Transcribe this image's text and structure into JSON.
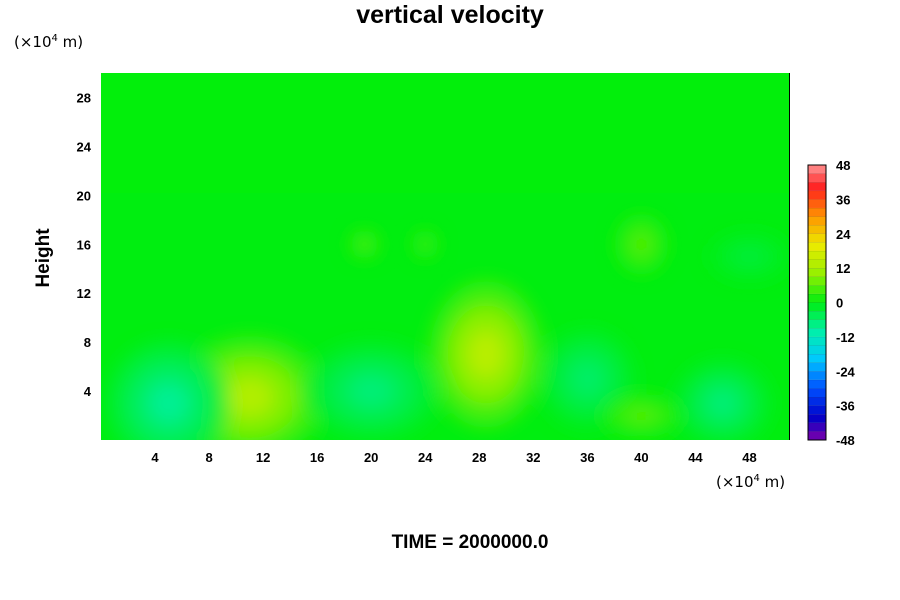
{
  "chart_data": {
    "type": "heatmap",
    "title": "vertical velocity",
    "xlabel": "",
    "ylabel": "Height",
    "x_unit": "(×10⁴ m)",
    "y_unit": "(×10⁴ m)",
    "x_unit_prefix": "(×10",
    "x_unit_exp": "4",
    "x_unit_suffix": " m)",
    "y_unit_prefix": "(×10",
    "y_unit_exp": "4",
    "y_unit_suffix": " m)",
    "xlim": [
      0,
      51
    ],
    "ylim": [
      0,
      30
    ],
    "x_ticks": [
      4,
      8,
      12,
      16,
      20,
      24,
      28,
      32,
      36,
      40,
      44,
      48
    ],
    "y_ticks": [
      4,
      8,
      12,
      16,
      20,
      24,
      28
    ],
    "colorbar": {
      "min": -48,
      "max": 48,
      "ticks": [
        48,
        36,
        24,
        12,
        0,
        -12,
        -24,
        -36,
        -48
      ]
    },
    "features": [
      {
        "x": 11,
        "y": 3.5,
        "value": 14,
        "rx": 5.5,
        "ry": 5
      },
      {
        "x": 28.5,
        "y": 7,
        "value": 15,
        "rx": 4.2,
        "ry": 6
      },
      {
        "x": 5,
        "y": 3,
        "value": -9,
        "rx": 4.5,
        "ry": 5
      },
      {
        "x": 20,
        "y": 4,
        "value": -7,
        "rx": 5,
        "ry": 4
      },
      {
        "x": 36,
        "y": 5,
        "value": -6,
        "rx": 3.5,
        "ry": 4
      },
      {
        "x": 46,
        "y": 3,
        "value": -7,
        "rx": 3.5,
        "ry": 3.5
      },
      {
        "x": 40,
        "y": 2,
        "value": 6,
        "rx": 3,
        "ry": 1.8
      },
      {
        "x": 40,
        "y": 16,
        "value": 6,
        "rx": 2,
        "ry": 2.5
      },
      {
        "x": 19.5,
        "y": 16,
        "value": 6,
        "rx": 1.2,
        "ry": 1.2
      },
      {
        "x": 24,
        "y": 16,
        "value": 5,
        "rx": 1,
        "ry": 1.2
      },
      {
        "x": 48,
        "y": 15,
        "value": -3,
        "rx": 3,
        "ry": 2
      }
    ],
    "footer": "TIME = 2000000.0"
  }
}
